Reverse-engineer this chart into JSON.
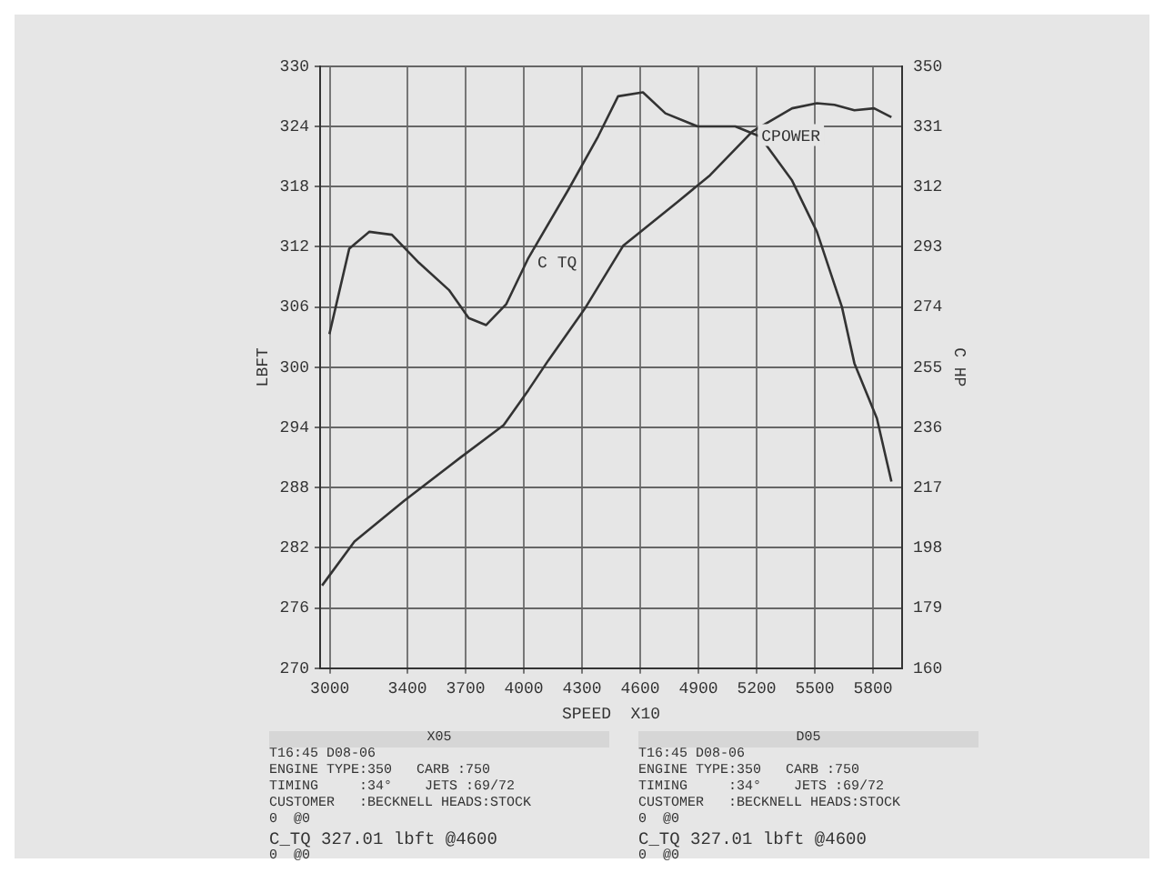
{
  "chart_data": {
    "type": "line",
    "xlabel": "SPEED  X10",
    "ylabel": "LBFT",
    "y2label": "C HP",
    "xlim": [
      2950,
      5950
    ],
    "xticks": [
      3000,
      3400,
      3700,
      4000,
      4300,
      4600,
      4900,
      5200,
      5500,
      5800
    ],
    "ylim": [
      270,
      330
    ],
    "yticks": [
      270,
      276,
      282,
      288,
      294,
      300,
      306,
      312,
      318,
      324,
      330
    ],
    "y2lim": [
      160,
      350
    ],
    "y2ticks": [
      160,
      179,
      198,
      217,
      236,
      255,
      274,
      293,
      312,
      331,
      350
    ],
    "grid": true,
    "legend": false,
    "marker": "none",
    "line_style": "solid",
    "series": [
      {
        "name": "C TQ",
        "color": "#333333",
        "x": [
          2998,
          3100,
          3204,
          3320,
          3460,
          3614,
          3716,
          3806,
          3910,
          4024,
          4230,
          4383,
          4486,
          4614,
          4730,
          4896,
          5090,
          5217,
          5383,
          5511,
          5640,
          5704,
          5820,
          5895
        ],
        "values": [
          303.3,
          311.8,
          313.5,
          313.2,
          310.4,
          307.7,
          304.9,
          304.2,
          306.3,
          310.9,
          317.7,
          323,
          327,
          327.4,
          325.3,
          324,
          324,
          323,
          318.6,
          313.5,
          306,
          300.4,
          294.9,
          288.6
        ]
      },
      {
        "name": "CPOWER",
        "color": "#333333",
        "axis": "y2",
        "x": [
          2960,
          3127,
          3383,
          3678,
          3896,
          4024,
          4127,
          4319,
          4512,
          4793,
          4960,
          5178,
          5383,
          5511,
          5601,
          5704,
          5806,
          5895
        ],
        "values": [
          186.1,
          200,
          212.8,
          226.7,
          236.7,
          247.8,
          257.2,
          273.9,
          293.3,
          307.2,
          315.6,
          329.4,
          336.7,
          338.3,
          337.8,
          336.1,
          336.7,
          333.9
        ]
      }
    ],
    "annotations": [
      "X05",
      "T16:45 D08-06",
      "ENGINE TYPE:350   CARB :750",
      "TIMING     :34°    JETS :69/72",
      "CUSTOMER   :BECKNELL HEADS:STOCK",
      "0  @0",
      "C_TQ 327.01 lbft @4600",
      "0  @0",
      "D05",
      "T16:45 D08-06",
      "ENGINE TYPE:350   CARB :750",
      "TIMING     :34°    JETS :69/72",
      "CUSTOMER   :BECKNELL HEADS:STOCK",
      "0  @0",
      "C_TQ 327.01 lbft @4600",
      "0  @0"
    ]
  }
}
